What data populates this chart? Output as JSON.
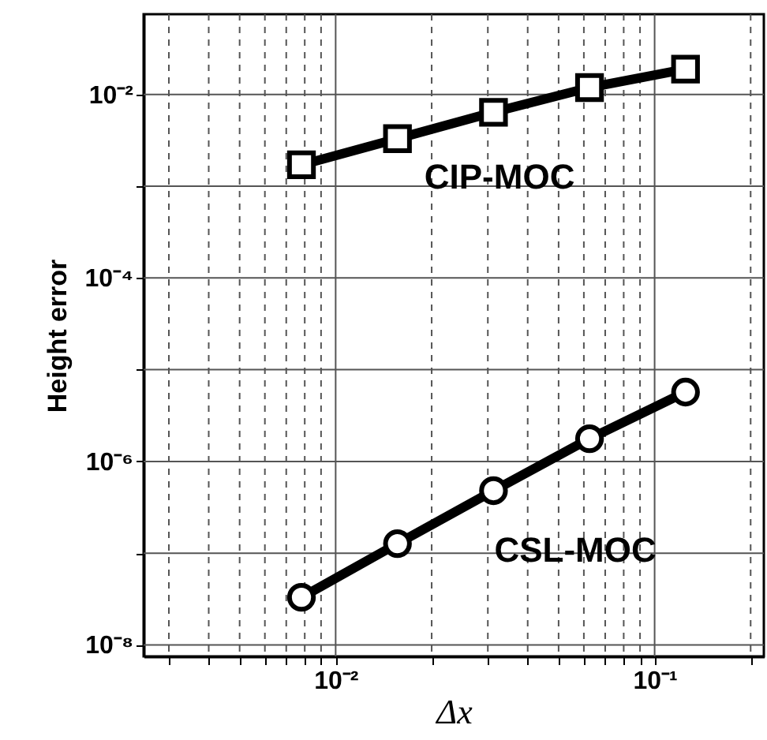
{
  "chart_data": {
    "type": "line",
    "xlabel": "Δx",
    "ylabel": "Height error",
    "x": [
      0.0078125,
      0.015625,
      0.03125,
      0.0625,
      0.125
    ],
    "series": [
      {
        "name": "CIP-MOC",
        "color": "#000000",
        "marker": "square",
        "values": [
          0.00171,
          0.0033,
          0.0064,
          0.0119,
          0.0189
        ]
      },
      {
        "name": "CSL-MOC",
        "color": "#000000",
        "marker": "circle",
        "values": [
          3.3e-08,
          1.27e-07,
          4.8e-07,
          1.77e-06,
          5.7e-06
        ]
      }
    ],
    "log": "xy",
    "xlim": [
      0.0025,
      0.22
    ],
    "ylim": [
      7.5e-09,
      0.075
    ],
    "xticks": [
      {
        "value": 0.003,
        "label": null
      },
      {
        "value": 0.004,
        "label": null
      },
      {
        "value": 0.005,
        "label": null
      },
      {
        "value": 0.006,
        "label": null
      },
      {
        "value": 0.007,
        "label": null
      },
      {
        "value": 0.008,
        "label": null
      },
      {
        "value": 0.009,
        "label": null
      },
      {
        "value": 0.01,
        "label": "10⁻²"
      },
      {
        "value": 0.02,
        "label": null
      },
      {
        "value": 0.03,
        "label": null
      },
      {
        "value": 0.04,
        "label": null
      },
      {
        "value": 0.05,
        "label": null
      },
      {
        "value": 0.06,
        "label": null
      },
      {
        "value": 0.07,
        "label": null
      },
      {
        "value": 0.08,
        "label": null
      },
      {
        "value": 0.09,
        "label": null
      },
      {
        "value": 0.1,
        "label": "10⁻¹"
      },
      {
        "value": 0.2,
        "label": null
      }
    ],
    "yticks": [
      {
        "value": 1e-08,
        "label": "10⁻⁸"
      },
      {
        "value": 1e-07,
        "label": null
      },
      {
        "value": 1e-06,
        "label": "10⁻⁶"
      },
      {
        "value": 1e-05,
        "label": null
      },
      {
        "value": 0.0001,
        "label": "10⁻⁴"
      },
      {
        "value": 0.001,
        "label": null
      },
      {
        "value": 0.01,
        "label": "10⁻²"
      }
    ],
    "grid": true,
    "line_style": "solid"
  }
}
